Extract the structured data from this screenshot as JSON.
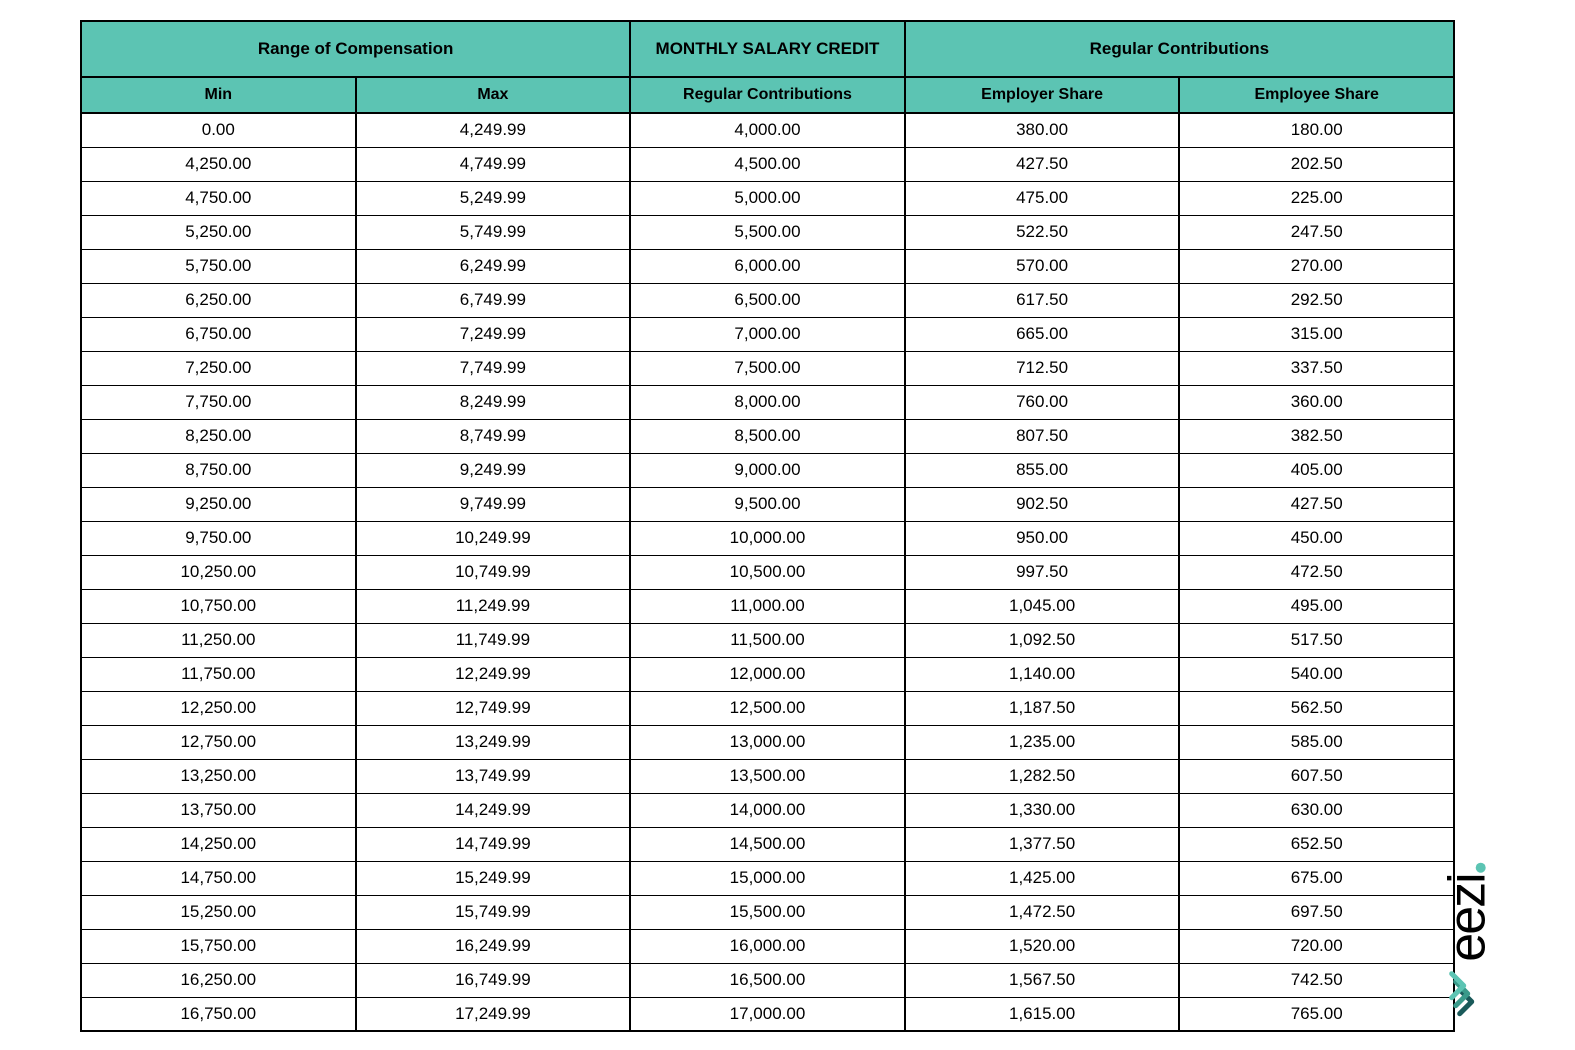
{
  "table": {
    "type": "table",
    "header_bg_color": "#5cc4b3",
    "border_color": "#000000",
    "background_color": "#ffffff",
    "font_size": 17,
    "header_font_size": 17,
    "groupHeaders": [
      {
        "label": "Range of Compensation",
        "colspan": 2
      },
      {
        "label": "MONTHLY SALARY CREDIT",
        "colspan": 1
      },
      {
        "label": "Regular Contributions",
        "colspan": 2
      }
    ],
    "columns": [
      "Min",
      "Max",
      "Regular Contributions",
      "Employer Share",
      "Employee Share"
    ],
    "rows": [
      [
        "0.00",
        "4,249.99",
        "4,000.00",
        "380.00",
        "180.00"
      ],
      [
        "4,250.00",
        "4,749.99",
        "4,500.00",
        "427.50",
        "202.50"
      ],
      [
        "4,750.00",
        "5,249.99",
        "5,000.00",
        "475.00",
        "225.00"
      ],
      [
        "5,250.00",
        "5,749.99",
        "5,500.00",
        "522.50",
        "247.50"
      ],
      [
        "5,750.00",
        "6,249.99",
        "6,000.00",
        "570.00",
        "270.00"
      ],
      [
        "6,250.00",
        "6,749.99",
        "6,500.00",
        "617.50",
        "292.50"
      ],
      [
        "6,750.00",
        "7,249.99",
        "7,000.00",
        "665.00",
        "315.00"
      ],
      [
        "7,250.00",
        "7,749.99",
        "7,500.00",
        "712.50",
        "337.50"
      ],
      [
        "7,750.00",
        "8,249.99",
        "8,000.00",
        "760.00",
        "360.00"
      ],
      [
        "8,250.00",
        "8,749.99",
        "8,500.00",
        "807.50",
        "382.50"
      ],
      [
        "8,750.00",
        "9,249.99",
        "9,000.00",
        "855.00",
        "405.00"
      ],
      [
        "9,250.00",
        "9,749.99",
        "9,500.00",
        "902.50",
        "427.50"
      ],
      [
        "9,750.00",
        "10,249.99",
        "10,000.00",
        "950.00",
        "450.00"
      ],
      [
        "10,250.00",
        "10,749.99",
        "10,500.00",
        "997.50",
        "472.50"
      ],
      [
        "10,750.00",
        "11,249.99",
        "11,000.00",
        "1,045.00",
        "495.00"
      ],
      [
        "11,250.00",
        "11,749.99",
        "11,500.00",
        "1,092.50",
        "517.50"
      ],
      [
        "11,750.00",
        "12,249.99",
        "12,000.00",
        "1,140.00",
        "540.00"
      ],
      [
        "12,250.00",
        "12,749.99",
        "12,500.00",
        "1,187.50",
        "562.50"
      ],
      [
        "12,750.00",
        "13,249.99",
        "13,000.00",
        "1,235.00",
        "585.00"
      ],
      [
        "13,250.00",
        "13,749.99",
        "13,500.00",
        "1,282.50",
        "607.50"
      ],
      [
        "13,750.00",
        "14,249.99",
        "14,000.00",
        "1,330.00",
        "630.00"
      ],
      [
        "14,250.00",
        "14,749.99",
        "14,500.00",
        "1,377.50",
        "652.50"
      ],
      [
        "14,750.00",
        "15,249.99",
        "15,000.00",
        "1,425.00",
        "675.00"
      ],
      [
        "15,250.00",
        "15,749.99",
        "15,500.00",
        "1,472.50",
        "697.50"
      ],
      [
        "15,750.00",
        "16,249.99",
        "16,000.00",
        "1,520.00",
        "720.00"
      ],
      [
        "16,250.00",
        "16,749.99",
        "16,500.00",
        "1,567.50",
        "742.50"
      ],
      [
        "16,750.00",
        "17,249.99",
        "17,000.00",
        "1,615.00",
        "765.00"
      ]
    ]
  },
  "logo": {
    "text": "eezi",
    "icon_color_dark": "#1a5a5a",
    "icon_color_light": "#5cc4b3",
    "dot_color": "#5cc4b3"
  }
}
